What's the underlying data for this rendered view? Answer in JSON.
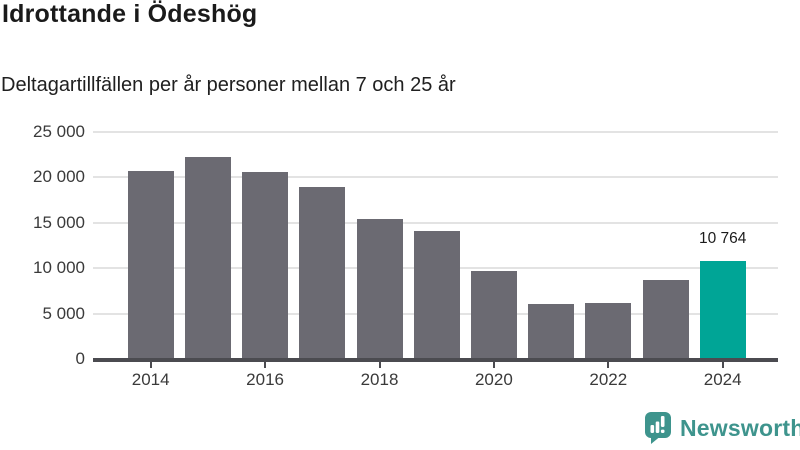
{
  "header": {
    "title": "Idrottande i Ödeshög",
    "subtitle": "Deltagartillfällen per år personer mellan 7 och 25 år"
  },
  "chart_data": {
    "type": "bar",
    "title": "Idrottande i Ödeshög",
    "subtitle": "Deltagartillfällen per år personer mellan 7 och 25 år",
    "categories": [
      "2014",
      "2015",
      "2016",
      "2017",
      "2018",
      "2019",
      "2020",
      "2021",
      "2022",
      "2023",
      "2024"
    ],
    "values": [
      20700,
      22250,
      20600,
      18900,
      15350,
      14100,
      9700,
      6050,
      6150,
      8650,
      10764
    ],
    "highlight_index": 10,
    "highlight_label": "10 764",
    "xlabel": "",
    "ylabel": "",
    "ylim": [
      0,
      25000
    ],
    "ytick_step": 5000,
    "ytick_labels": [
      "0",
      "5 000",
      "10 000",
      "15 000",
      "20 000",
      "25 000"
    ],
    "xtick_labels": [
      "2014",
      "2016",
      "2018",
      "2020",
      "2022",
      "2024"
    ],
    "grid": true,
    "legend": "none",
    "bar_color": "#6b6a72",
    "highlight_color": "#00a596",
    "gridline_color": "#e3e3e3",
    "axis_color": "#4b4b50"
  },
  "branding": {
    "name": "Newsworthy",
    "color": "#3e948d",
    "icon": "newsworthy-bubble-chart-icon"
  }
}
